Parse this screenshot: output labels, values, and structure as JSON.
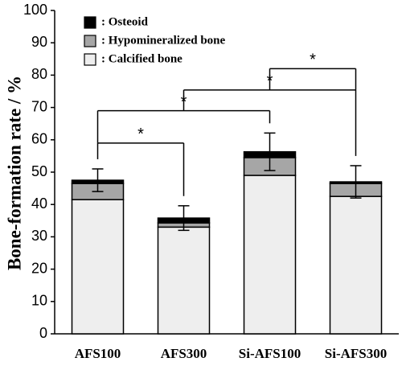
{
  "chart_data": {
    "type": "stacked-bar",
    "ylabel": "Bone-formation rate / %",
    "categories": [
      "AFS100",
      "AFS300",
      "Si-AFS100",
      "Si-AFS300"
    ],
    "series": [
      {
        "name": ": Calcified bone",
        "color": "#eeeeee",
        "values": [
          41.5,
          33,
          49,
          42.5
        ]
      },
      {
        "name": ": Hypomineralized bone",
        "color": "#a6a6a6",
        "values": [
          5,
          1.3,
          5.5,
          4
        ]
      },
      {
        "name": ": Osteoid",
        "color": "#000000",
        "values": [
          1,
          1.5,
          1.8,
          0.5
        ]
      }
    ],
    "errors": [
      3.5,
      3.8,
      5.8,
      5
    ],
    "ylim": [
      0,
      100
    ],
    "yticks": [
      0,
      10,
      20,
      30,
      40,
      50,
      60,
      70,
      80,
      90,
      100
    ],
    "significance": [
      {
        "from": 0,
        "to": 1,
        "y": 59,
        "label": "*"
      },
      {
        "from": 0,
        "to": 2,
        "y": 69,
        "label": "*"
      },
      {
        "from": 1,
        "to": 3,
        "y": 75.4,
        "label": "*"
      },
      {
        "from": 2,
        "to": 3,
        "y": 82,
        "label": "*"
      }
    ]
  }
}
